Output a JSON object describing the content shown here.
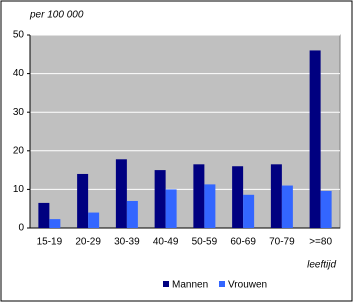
{
  "chart_data": {
    "type": "bar",
    "unit_label": "per 100 000",
    "x_label": "leeftijd",
    "categories": [
      "15-19",
      "20-29",
      "30-39",
      "40-49",
      "50-59",
      "60-69",
      "70-79",
      ">=80"
    ],
    "series": [
      {
        "name": "Mannen",
        "color": "#000080",
        "values": [
          6.5,
          14,
          17.8,
          15,
          16.5,
          16,
          16.5,
          46
        ]
      },
      {
        "name": "Vrouwen",
        "color": "#3366ff",
        "values": [
          2.3,
          4,
          7,
          10,
          11.3,
          8.6,
          11,
          9.6
        ]
      }
    ],
    "ylim": [
      0,
      50
    ],
    "yticks": [
      0,
      10,
      20,
      30,
      40,
      50
    ],
    "grid": true
  }
}
